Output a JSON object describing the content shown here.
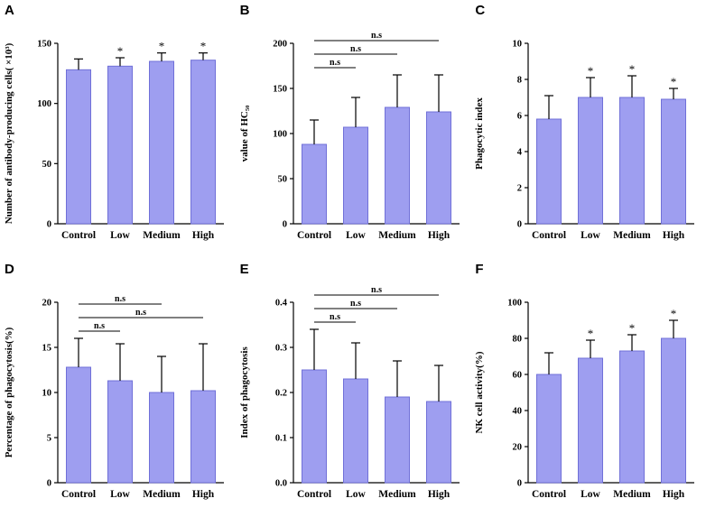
{
  "style": {
    "bar_fill": "#9e9ef0",
    "bar_edge": "#7070d8",
    "error_color": "#000000",
    "axis_color": "#000000",
    "background": "#ffffff"
  },
  "chart_data": [
    {
      "panel": "A",
      "type": "bar",
      "ylabel": "Number of antibody-producing cells( ×10³)",
      "ylim": [
        0,
        150
      ],
      "ytick_values": [
        0,
        50,
        100,
        150
      ],
      "ytick_labels": [
        "0",
        "50",
        "100",
        "150"
      ],
      "categories": [
        "Control",
        "Low",
        "Medium",
        "High"
      ],
      "values": [
        128,
        131,
        135,
        136
      ],
      "errors": [
        9,
        7,
        7,
        6
      ],
      "sig": [
        "",
        "*",
        "*",
        "*"
      ],
      "brackets": []
    },
    {
      "panel": "B",
      "type": "bar",
      "ylabel": "value of HC₅₀",
      "ylim": [
        0,
        200
      ],
      "ytick_values": [
        0,
        50,
        100,
        150,
        200
      ],
      "ytick_labels": [
        "0",
        "50",
        "100",
        "150",
        "200"
      ],
      "categories": [
        "Control",
        "Low",
        "Medium",
        "High"
      ],
      "values": [
        88,
        107,
        129,
        124
      ],
      "errors": [
        27,
        33,
        36,
        41
      ],
      "sig": [
        "",
        "",
        "",
        ""
      ],
      "brackets": [
        {
          "from": 0,
          "to": 1,
          "label": "n.s",
          "level": 0
        },
        {
          "from": 0,
          "to": 2,
          "label": "n.s",
          "level": 1
        },
        {
          "from": 0,
          "to": 3,
          "label": "n.s",
          "level": 2
        }
      ]
    },
    {
      "panel": "C",
      "type": "bar",
      "ylabel": "Phagocytic index",
      "ylim": [
        0,
        10
      ],
      "ytick_values": [
        0,
        2,
        4,
        6,
        8,
        10
      ],
      "ytick_labels": [
        "0",
        "2",
        "4",
        "6",
        "8",
        "10"
      ],
      "categories": [
        "Control",
        "Low",
        "Medium",
        "High"
      ],
      "values": [
        5.8,
        7.0,
        7.0,
        6.9
      ],
      "errors": [
        1.3,
        1.1,
        1.2,
        0.6
      ],
      "sig": [
        "",
        "*",
        "*",
        "*"
      ],
      "brackets": []
    },
    {
      "panel": "D",
      "type": "bar",
      "ylabel": "Percentage of phagocytosis(%)",
      "ylim": [
        0,
        20
      ],
      "ytick_values": [
        0,
        5,
        10,
        15,
        20
      ],
      "ytick_labels": [
        "0",
        "5",
        "10",
        "15",
        "20"
      ],
      "categories": [
        "Control",
        "Low",
        "Medium",
        "High"
      ],
      "values": [
        12.8,
        11.3,
        10.0,
        10.2
      ],
      "errors": [
        3.2,
        4.1,
        4.0,
        5.2
      ],
      "sig": [
        "",
        "",
        "",
        ""
      ],
      "brackets": [
        {
          "from": 0,
          "to": 1,
          "label": "n.s",
          "level": 0
        },
        {
          "from": 0,
          "to": 3,
          "label": "n.s",
          "level": 1
        },
        {
          "from": 0,
          "to": 2,
          "label": "n.s",
          "level": 2
        }
      ]
    },
    {
      "panel": "E",
      "type": "bar",
      "ylabel": "Index of phagocytosis",
      "ylim": [
        0,
        0.4
      ],
      "ytick_values": [
        0,
        0.1,
        0.2,
        0.3,
        0.4
      ],
      "ytick_labels": [
        "0.0",
        "0.1",
        "0.2",
        "0.3",
        "0.4"
      ],
      "categories": [
        "Control",
        "Low",
        "Medium",
        "High"
      ],
      "values": [
        0.25,
        0.23,
        0.19,
        0.18
      ],
      "errors": [
        0.09,
        0.08,
        0.08,
        0.08
      ],
      "sig": [
        "",
        "",
        "",
        ""
      ],
      "brackets": [
        {
          "from": 0,
          "to": 1,
          "label": "n.s",
          "level": 0
        },
        {
          "from": 0,
          "to": 2,
          "label": "n.s",
          "level": 1
        },
        {
          "from": 0,
          "to": 3,
          "label": "n.s",
          "level": 2
        }
      ]
    },
    {
      "panel": "F",
      "type": "bar",
      "ylabel": "NK cell activity(%)",
      "ylim": [
        0,
        100
      ],
      "ytick_values": [
        0,
        20,
        40,
        60,
        80,
        100
      ],
      "ytick_labels": [
        "0",
        "20",
        "40",
        "60",
        "80",
        "100"
      ],
      "categories": [
        "Control",
        "Low",
        "Medium",
        "High"
      ],
      "values": [
        60,
        69,
        73,
        80
      ],
      "errors": [
        12,
        10,
        9,
        10
      ],
      "sig": [
        "",
        "*",
        "*",
        "*"
      ],
      "brackets": []
    }
  ]
}
